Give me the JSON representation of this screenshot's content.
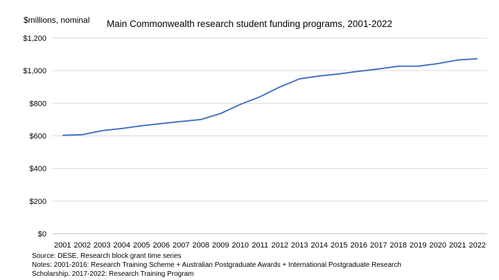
{
  "chart_data": {
    "type": "line",
    "title": "Main Commonwealth research student funding programs, 2001-2022",
    "ylabel": "$millions, nominal",
    "xlabel": "",
    "categories": [
      "2001",
      "2002",
      "2003",
      "2004",
      "2005",
      "2006",
      "2007",
      "2008",
      "2009",
      "2010",
      "2011",
      "2012",
      "2013",
      "2014",
      "2015",
      "2016",
      "2017",
      "2018",
      "2019",
      "2020",
      "2021",
      "2022"
    ],
    "series": [
      {
        "name": "Research student funding",
        "color": "#4472C4",
        "values": [
          603,
          607,
          632,
          645,
          662,
          675,
          688,
          700,
          737,
          793,
          840,
          900,
          950,
          967,
          980,
          996,
          1010,
          1027,
          1027,
          1043,
          1065,
          1073
        ]
      }
    ],
    "ylim": [
      0,
      1200
    ],
    "yticks": [
      {
        "value": 0,
        "label": "$0"
      },
      {
        "value": 200,
        "label": "$200"
      },
      {
        "value": 400,
        "label": "$400"
      },
      {
        "value": 600,
        "label": "$600"
      },
      {
        "value": 800,
        "label": "$800"
      },
      {
        "value": 1000,
        "label": "$1,000"
      },
      {
        "value": 1200,
        "label": "$1,200"
      }
    ],
    "grid": true,
    "legend": "none"
  },
  "notes": {
    "source": "Source: DESE, Research block grant time series",
    "line1": "Notes: 2001-2016: Research Training Scheme + Australian Postgraduate Awards + International Postgraduate Research",
    "line2": "Scholarship. 2017-2022: Research Training Program"
  }
}
